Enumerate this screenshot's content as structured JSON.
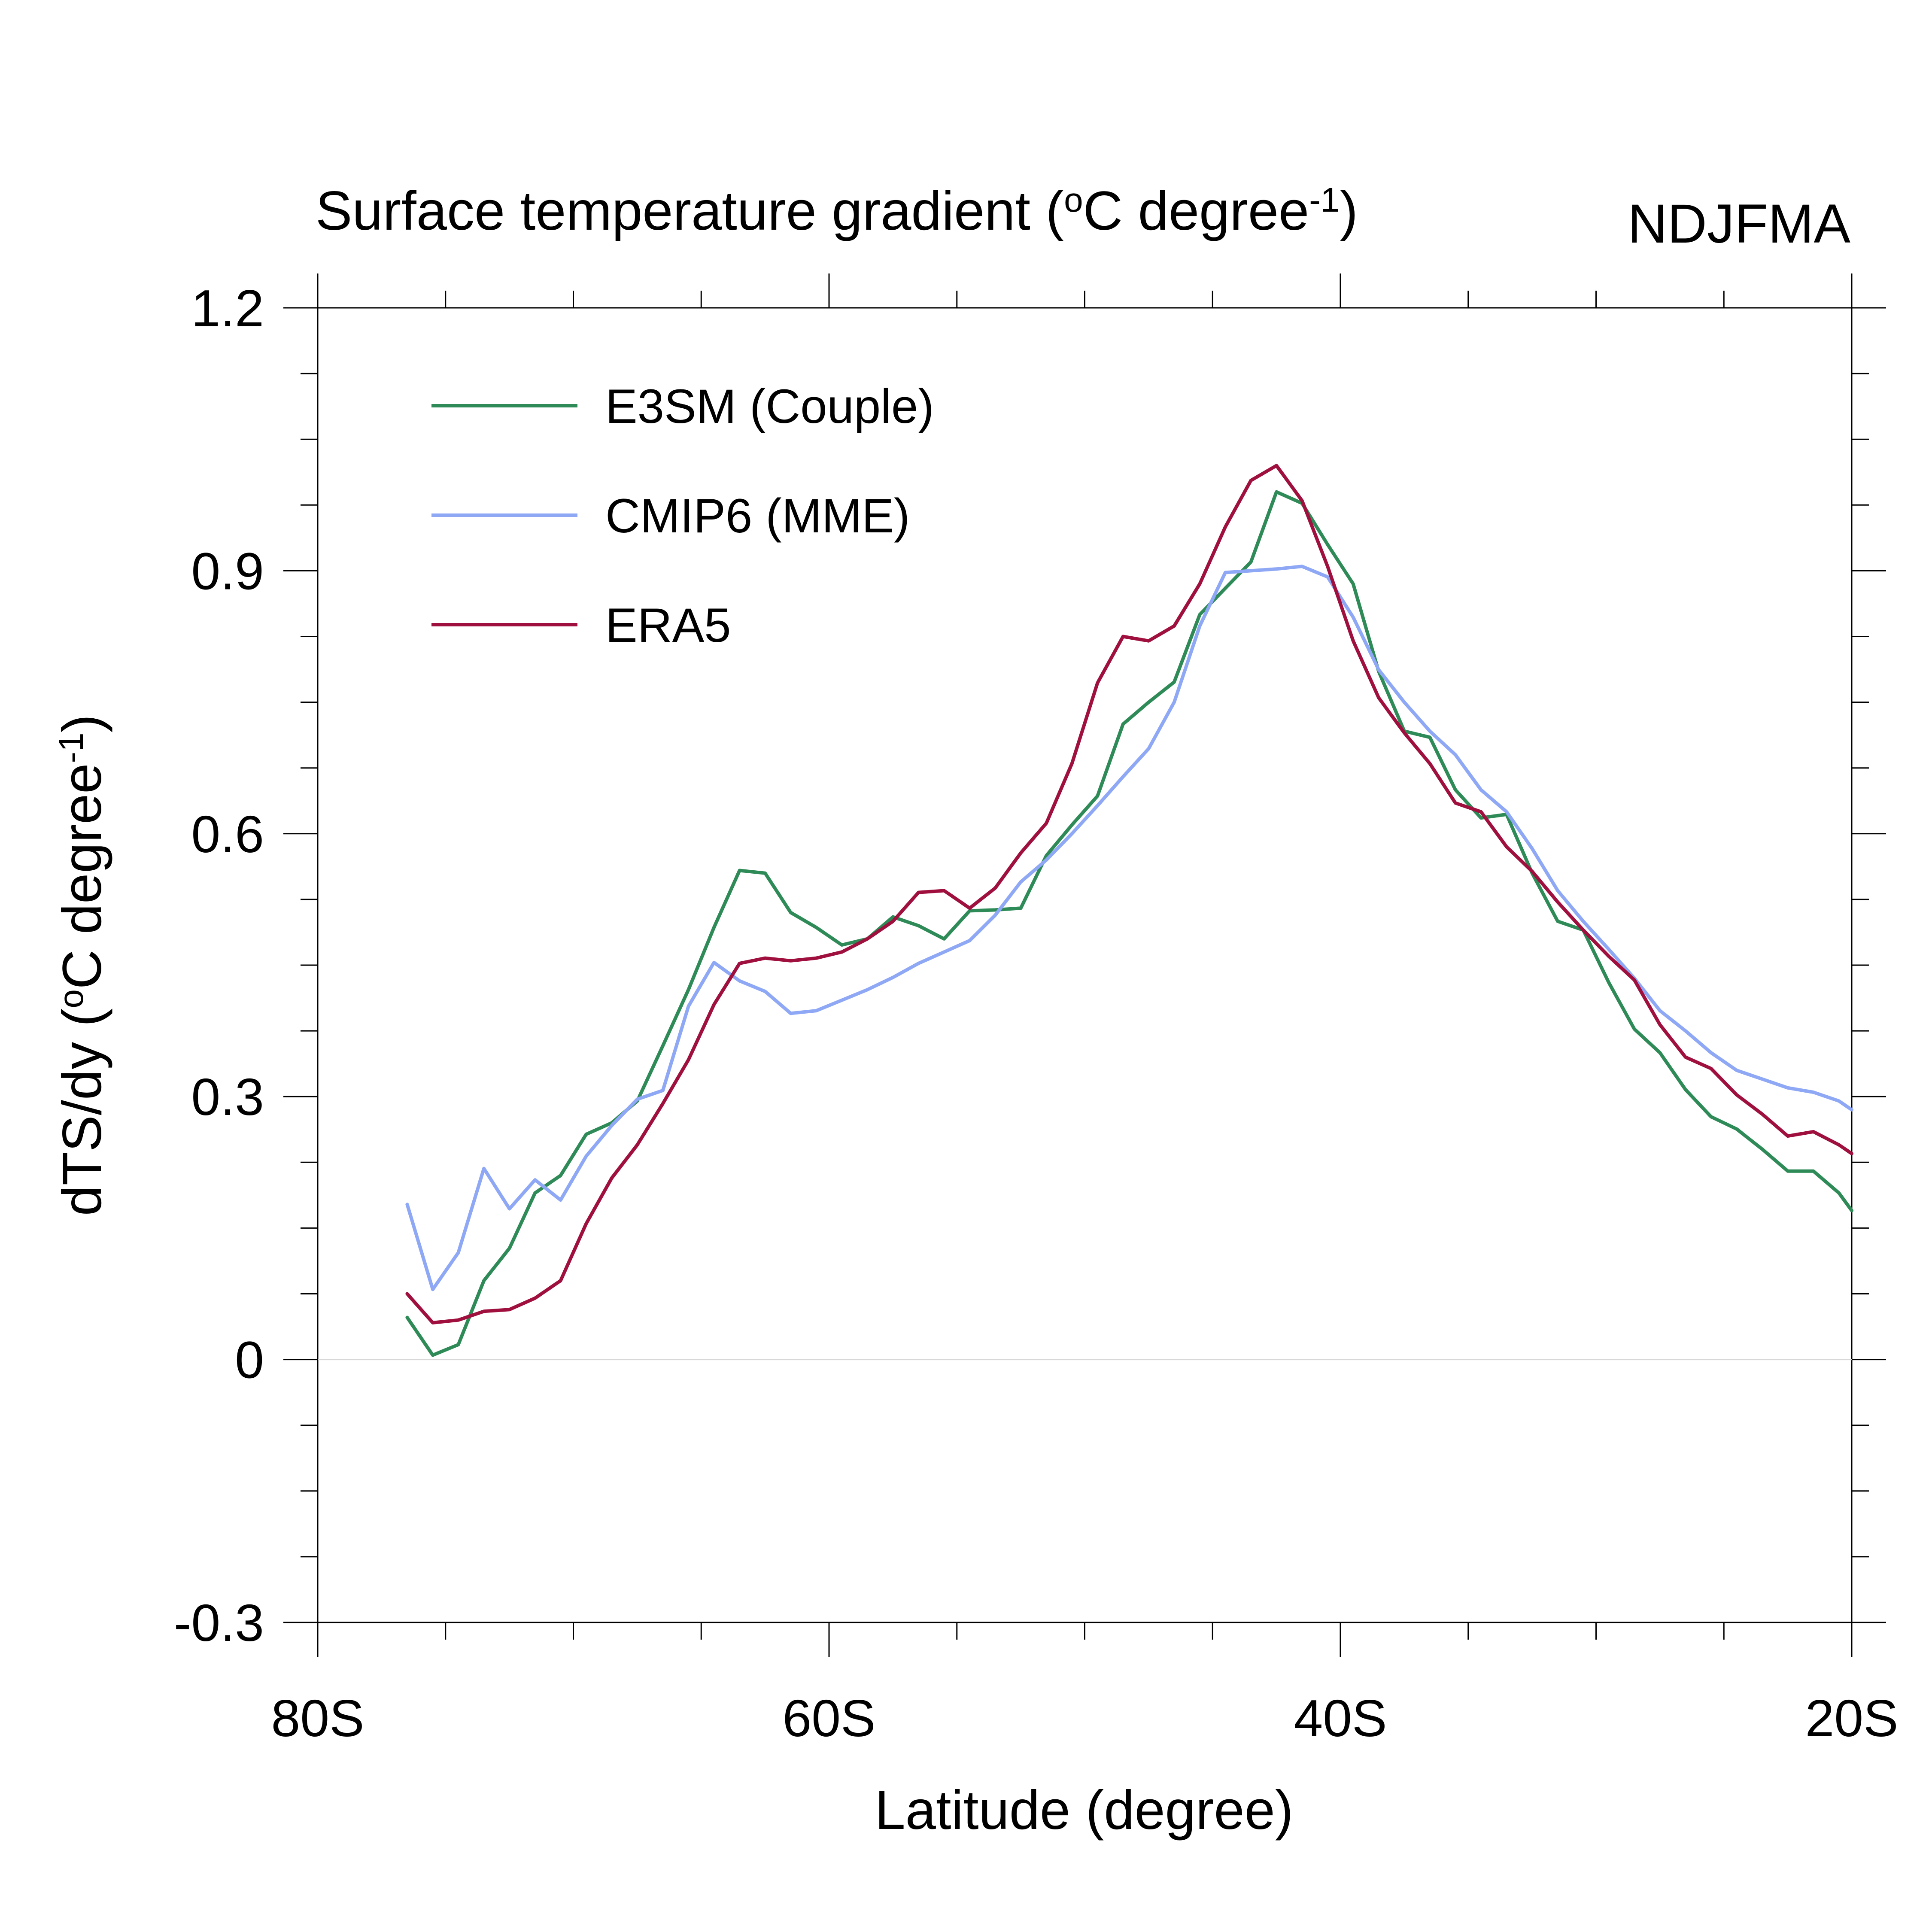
{
  "chart_data": {
    "type": "line",
    "title": "Surface temperature gradient (°C degree⁻¹)",
    "title_main": "Surface temperature gradient (",
    "title_unit": "C degree",
    "title_sup_deg": "o",
    "title_sup_exp": "-1",
    "title_close": ")",
    "season": "NDJFMA",
    "xlabel": "Latitude (degree)",
    "ylabel": "dTS/dy (°C degree⁻¹)",
    "ylabel_main": "dTS/dy (",
    "ylabel_unit": "C degree",
    "ylabel_sup_deg": "o",
    "ylabel_sup_exp": "-1",
    "ylabel_close": ")",
    "xlim": [
      -80,
      -20
    ],
    "ylim": [
      -0.3,
      1.2
    ],
    "x_ticks": [
      {
        "value": -80,
        "label": "80S"
      },
      {
        "value": -60,
        "label": "60S"
      },
      {
        "value": -40,
        "label": "40S"
      },
      {
        "value": -20,
        "label": "20S"
      }
    ],
    "y_ticks": [
      {
        "value": -0.3,
        "label": "-0.3"
      },
      {
        "value": 0,
        "label": "0"
      },
      {
        "value": 0.3,
        "label": "0.3"
      },
      {
        "value": 0.6,
        "label": "0.6"
      },
      {
        "value": 0.9,
        "label": "0.9"
      },
      {
        "value": 1.2,
        "label": "1.2"
      }
    ],
    "x_minor_step": 5,
    "y_minor_step": 0.075,
    "zero_line": true,
    "legend_position": "top-left",
    "x": [
      -76.5,
      -75.5,
      -74.5,
      -73.5,
      -72.5,
      -71.5,
      -70.5,
      -69.5,
      -68.5,
      -67.5,
      -66.5,
      -65.5,
      -64.5,
      -63.5,
      -62.5,
      -61.5,
      -60.5,
      -59.5,
      -58.5,
      -57.5,
      -56.5,
      -55.5,
      -54.5,
      -53.5,
      -52.5,
      -51.5,
      -50.5,
      -49.5,
      -48.5,
      -47.5,
      -46.5,
      -45.5,
      -44.5,
      -43.5,
      -42.5,
      -41.5,
      -40.5,
      -39.5,
      -38.5,
      -37.5,
      -36.5,
      -35.5,
      -34.5,
      -33.5,
      -32.5,
      -31.5,
      -30.5,
      -29.5,
      -28.5,
      -27.5,
      -26.5,
      -25.5,
      -24.5,
      -23.5,
      -22.5,
      -21.5,
      -20.5,
      -20.0
    ],
    "series": [
      {
        "name": "E3SM (Couple)",
        "color": "#2e8b57",
        "values": [
          0.048,
          0.005,
          0.017,
          0.09,
          0.127,
          0.19,
          0.21,
          0.257,
          0.27,
          0.295,
          0.358,
          0.422,
          0.493,
          0.558,
          0.555,
          0.51,
          0.493,
          0.473,
          0.48,
          0.505,
          0.495,
          0.48,
          0.512,
          0.513,
          0.515,
          0.575,
          0.61,
          0.643,
          0.725,
          0.75,
          0.773,
          0.85,
          0.88,
          0.91,
          0.99,
          0.977,
          0.93,
          0.885,
          0.785,
          0.717,
          0.71,
          0.65,
          0.618,
          0.622,
          0.555,
          0.5,
          0.49,
          0.43,
          0.377,
          0.35,
          0.308,
          0.277,
          0.263,
          0.24,
          0.215,
          0.215,
          0.19,
          0.17
        ]
      },
      {
        "name": "CMIP6 (MME)",
        "color": "#8ea8f5",
        "values": [
          0.177,
          0.08,
          0.122,
          0.218,
          0.172,
          0.205,
          0.182,
          0.232,
          0.267,
          0.297,
          0.307,
          0.403,
          0.453,
          0.432,
          0.42,
          0.395,
          0.398,
          0.41,
          0.422,
          0.436,
          0.452,
          0.465,
          0.478,
          0.507,
          0.545,
          0.57,
          0.6,
          0.632,
          0.665,
          0.697,
          0.75,
          0.837,
          0.898,
          0.9,
          0.902,
          0.905,
          0.893,
          0.847,
          0.787,
          0.75,
          0.717,
          0.69,
          0.65,
          0.625,
          0.583,
          0.535,
          0.5,
          0.468,
          0.435,
          0.398,
          0.375,
          0.35,
          0.33,
          0.32,
          0.31,
          0.305,
          0.295,
          0.285
        ]
      },
      {
        "name": "ERA5",
        "color": "#a0103f",
        "values": [
          0.075,
          0.042,
          0.045,
          0.055,
          0.057,
          0.07,
          0.09,
          0.155,
          0.207,
          0.245,
          0.292,
          0.342,
          0.405,
          0.452,
          0.458,
          0.455,
          0.458,
          0.465,
          0.48,
          0.5,
          0.533,
          0.535,
          0.515,
          0.538,
          0.578,
          0.612,
          0.68,
          0.772,
          0.825,
          0.82,
          0.837,
          0.885,
          0.95,
          1.003,
          1.02,
          0.98,
          0.905,
          0.82,
          0.755,
          0.715,
          0.68,
          0.635,
          0.625,
          0.585,
          0.557,
          0.522,
          0.49,
          0.46,
          0.433,
          0.382,
          0.345,
          0.332,
          0.302,
          0.28,
          0.255,
          0.26,
          0.245,
          0.235
        ]
      }
    ]
  }
}
